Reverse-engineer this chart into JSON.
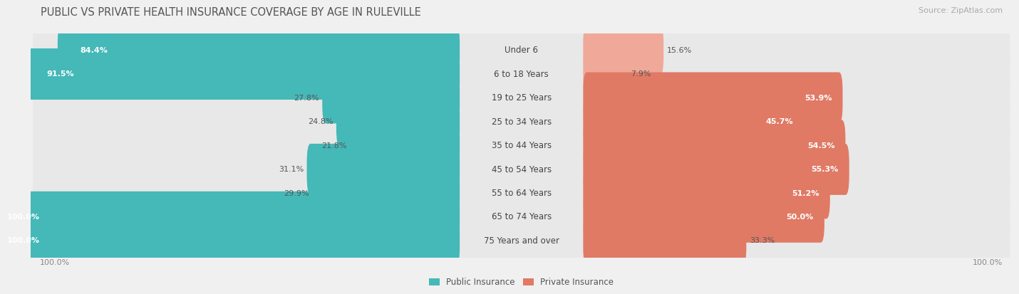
{
  "title": "PUBLIC VS PRIVATE HEALTH INSURANCE COVERAGE BY AGE IN RULEVILLE",
  "source": "Source: ZipAtlas.com",
  "categories": [
    "Under 6",
    "6 to 18 Years",
    "19 to 25 Years",
    "25 to 34 Years",
    "35 to 44 Years",
    "45 to 54 Years",
    "55 to 64 Years",
    "65 to 74 Years",
    "75 Years and over"
  ],
  "public_values": [
    84.4,
    91.5,
    27.8,
    24.8,
    21.8,
    31.1,
    29.9,
    100.0,
    100.0
  ],
  "private_values": [
    15.6,
    7.9,
    53.9,
    45.7,
    54.5,
    55.3,
    51.2,
    50.0,
    33.3
  ],
  "public_color": "#45b8b8",
  "private_color_strong": "#e07a65",
  "private_color_weak": "#f0a898",
  "private_weak_threshold": 20,
  "public_label": "Public Insurance",
  "private_label": "Private Insurance",
  "bg_color": "#f0f0f0",
  "row_bg_color": "#e8e8e8",
  "title_fontsize": 10.5,
  "label_fontsize": 8.5,
  "value_fontsize": 8.0,
  "source_fontsize": 8,
  "axis_label_fontsize": 8
}
